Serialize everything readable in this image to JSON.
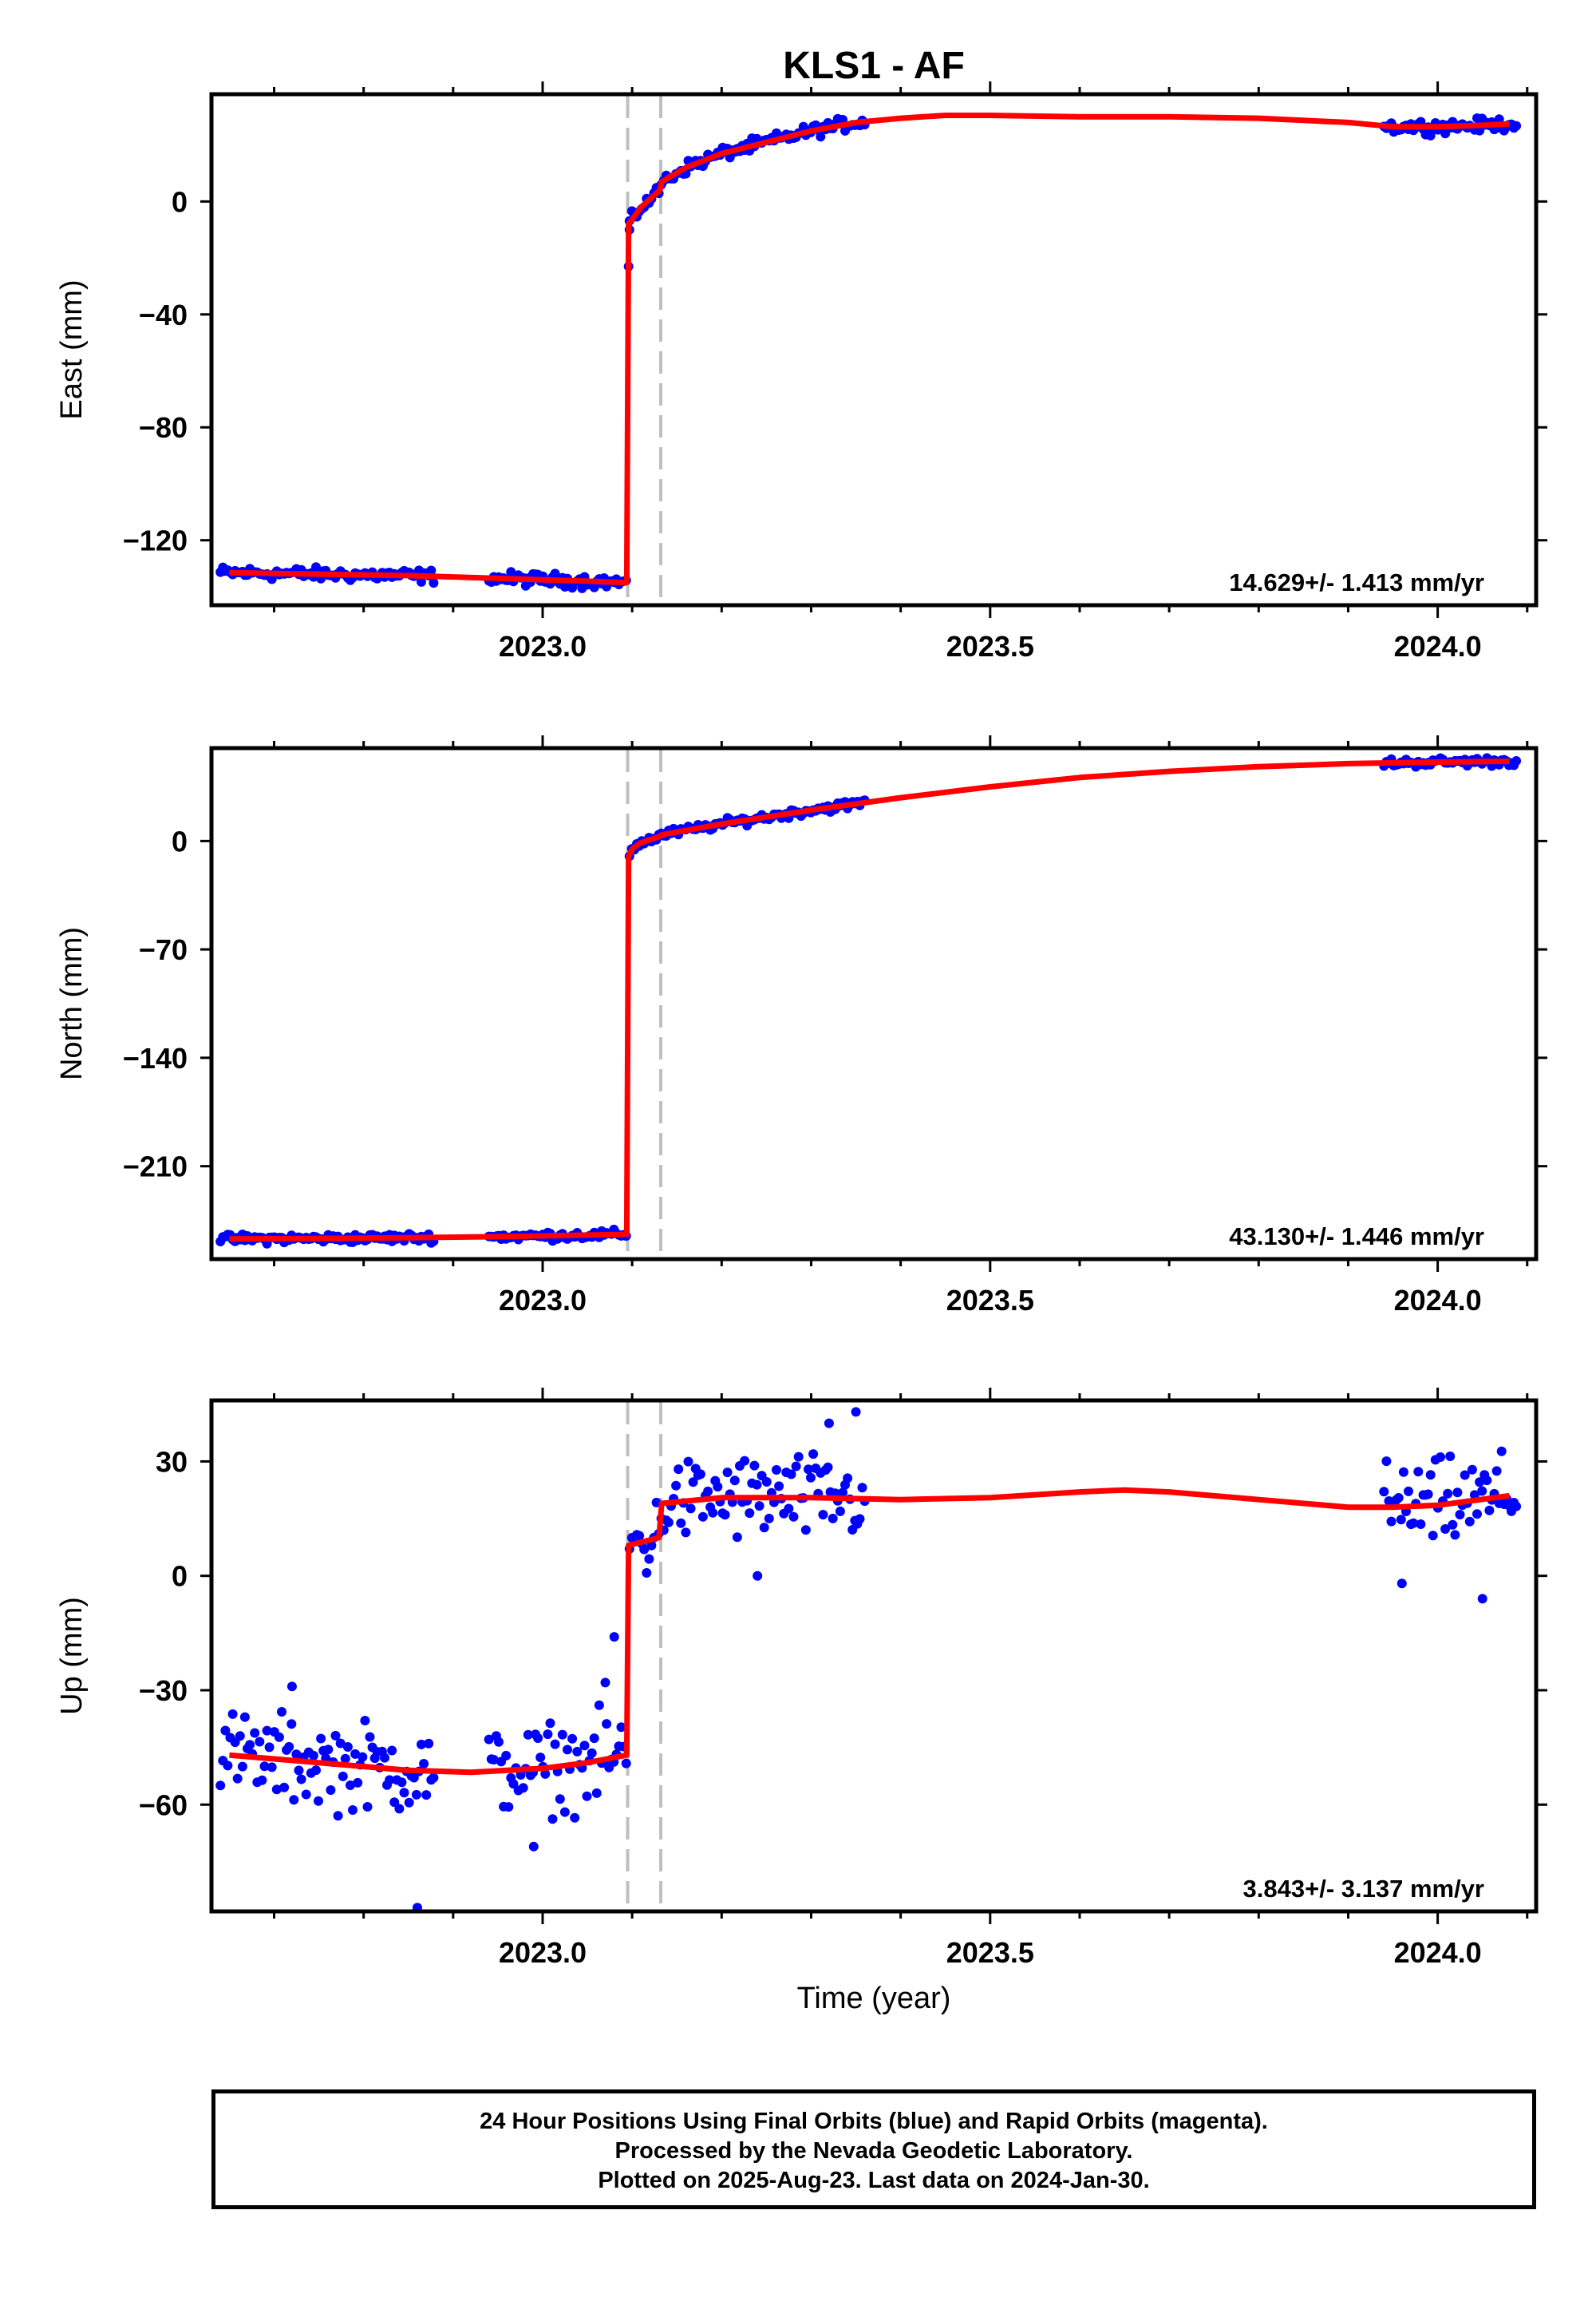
{
  "chart_data": {
    "type": "scatter",
    "title": "KLS1 - AF",
    "xlabel": "Time (year)",
    "xlim": [
      2022.63,
      2024.11
    ],
    "x_ticks": [
      2023.0,
      2023.5,
      2024.0
    ],
    "x_tick_labels": [
      "2023.0",
      "2023.5",
      "2024.0"
    ],
    "event_lines_x": [
      2023.095,
      2023.132
    ],
    "colors": {
      "points": "#0000ff",
      "model": "#ff0000",
      "event_lines": "#bfbfbf"
    },
    "panels": [
      {
        "name": "East",
        "ylabel": "East (mm)",
        "ylim": [
          -143,
          38
        ],
        "y_ticks": [
          -120,
          -80,
          -40,
          0
        ],
        "y_tick_labels": [
          "−120",
          "−80",
          "−40",
          "0"
        ],
        "rate_label": "14.629+/- 1.413 mm/yr",
        "noise": 1.6,
        "model_points": [
          [
            2022.65,
            -131.5
          ],
          [
            2022.75,
            -132
          ],
          [
            2022.85,
            -132.5
          ],
          [
            2022.95,
            -133.5
          ],
          [
            2023.05,
            -134.5
          ],
          [
            2023.094,
            -135
          ],
          [
            2023.096,
            -8
          ],
          [
            2023.11,
            -2
          ],
          [
            2023.131,
            4
          ],
          [
            2023.133,
            7
          ],
          [
            2023.16,
            12
          ],
          [
            2023.2,
            17
          ],
          [
            2023.25,
            21
          ],
          [
            2023.3,
            25
          ],
          [
            2023.35,
            28
          ],
          [
            2023.4,
            29.5
          ],
          [
            2023.45,
            30.5
          ],
          [
            2023.5,
            30.5
          ],
          [
            2023.6,
            30
          ],
          [
            2023.7,
            30
          ],
          [
            2023.8,
            29.5
          ],
          [
            2023.9,
            28
          ],
          [
            2023.95,
            26.5
          ],
          [
            2024.0,
            26.5
          ],
          [
            2024.05,
            27
          ],
          [
            2024.08,
            27.5
          ]
        ],
        "outliers": [
          [
            2023.096,
            -23
          ],
          [
            2023.097,
            -10
          ]
        ]
      },
      {
        "name": "North",
        "ylabel": "North (mm)",
        "ylim": [
          -270,
          60
        ],
        "y_ticks": [
          -210,
          -140,
          -70,
          0
        ],
        "y_tick_labels": [
          "−210",
          "−140",
          "−70",
          "0"
        ],
        "rate_label": "43.130+/- 1.446 mm/yr",
        "noise": 2.0,
        "model_points": [
          [
            2022.65,
            -257
          ],
          [
            2022.8,
            -256.5
          ],
          [
            2022.95,
            -255.5
          ],
          [
            2023.05,
            -254.5
          ],
          [
            2023.094,
            -254
          ],
          [
            2023.096,
            -10
          ],
          [
            2023.1,
            -5
          ],
          [
            2023.11,
            -1
          ],
          [
            2023.131,
            3
          ],
          [
            2023.133,
            4
          ],
          [
            2023.2,
            11
          ],
          [
            2023.3,
            20
          ],
          [
            2023.4,
            28
          ],
          [
            2023.5,
            35
          ],
          [
            2023.6,
            41
          ],
          [
            2023.7,
            45
          ],
          [
            2023.8,
            48
          ],
          [
            2023.9,
            50
          ],
          [
            2024.0,
            51
          ],
          [
            2024.08,
            51.5
          ]
        ],
        "outliers": []
      },
      {
        "name": "Up",
        "ylabel": "Up (mm)",
        "ylim": [
          -88,
          46
        ],
        "y_ticks": [
          -60,
          -30,
          0,
          30
        ],
        "y_tick_labels": [
          "−60",
          "−30",
          "0",
          "30"
        ],
        "rate_label": "3.843+/- 3.137 mm/yr",
        "noise": 8.0,
        "model_points": [
          [
            2022.65,
            -47
          ],
          [
            2022.75,
            -49
          ],
          [
            2022.85,
            -51
          ],
          [
            2022.92,
            -51.5
          ],
          [
            2023.0,
            -50.5
          ],
          [
            2023.05,
            -49
          ],
          [
            2023.094,
            -47
          ],
          [
            2023.096,
            8
          ],
          [
            2023.13,
            10
          ],
          [
            2023.133,
            19
          ],
          [
            2023.2,
            20.5
          ],
          [
            2023.3,
            20.5
          ],
          [
            2023.4,
            20
          ],
          [
            2023.5,
            20.5
          ],
          [
            2023.6,
            22
          ],
          [
            2023.65,
            22.5
          ],
          [
            2023.7,
            22
          ],
          [
            2023.8,
            20
          ],
          [
            2023.9,
            18
          ],
          [
            2023.95,
            18
          ],
          [
            2024.0,
            18.5
          ],
          [
            2024.08,
            21
          ]
        ],
        "outliers": [
          [
            2023.08,
            -16
          ],
          [
            2023.07,
            -28
          ],
          [
            2022.86,
            -87
          ],
          [
            2023.35,
            43
          ],
          [
            2023.32,
            40
          ],
          [
            2022.72,
            -29
          ],
          [
            2023.96,
            -2
          ],
          [
            2024.05,
            -6
          ],
          [
            2023.24,
            0
          ],
          [
            2022.99,
            -71
          ]
        ]
      }
    ],
    "data_segments": [
      [
        2022.64,
        2022.88
      ],
      [
        2022.94,
        2023.095
      ],
      [
        2023.097,
        2023.36
      ],
      [
        2023.94,
        2024.09
      ]
    ]
  },
  "footer": {
    "line1": "24 Hour Positions Using Final Orbits (blue) and Rapid Orbits (magenta).",
    "line2": "Processed by the Nevada Geodetic Laboratory.",
    "line3": "Plotted on 2025-Aug-23. Last data on 2024-Jan-30."
  }
}
